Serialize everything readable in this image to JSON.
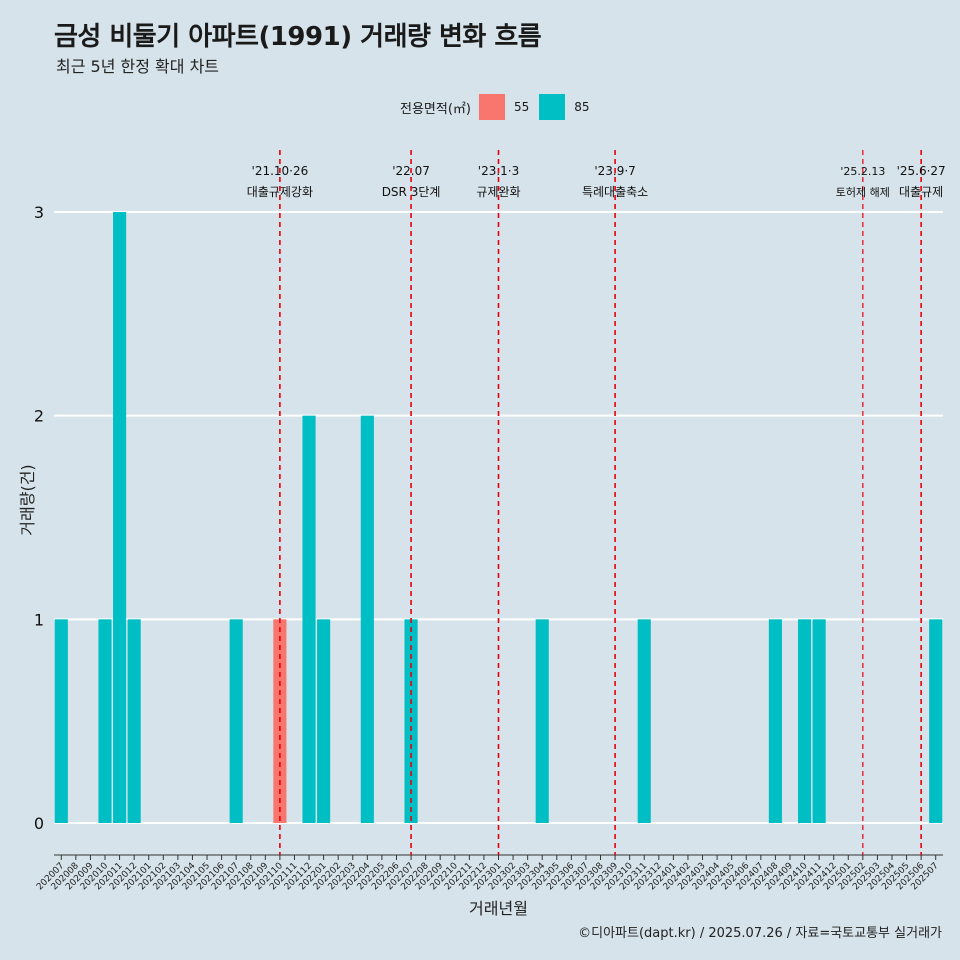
{
  "title": "금성 비둘기 아파트(1991) 거래량 변화 흐름",
  "subtitle": "최근 5년 한정 확대 차트",
  "legend": {
    "title": "전용면적(㎡)",
    "items": [
      {
        "label": "55",
        "color": "#f8766d"
      },
      {
        "label": "85",
        "color": "#00bfc4"
      }
    ]
  },
  "caption": "©디아파트(dapt.kr) / 2025.07.26 / 자료=국토교통부 실거래가",
  "chart_data": {
    "type": "bar",
    "stacked": true,
    "xlabel": "거래년월",
    "ylabel": "거래량(건)",
    "ylim": [
      0,
      3
    ],
    "yticks": [
      0,
      1,
      2,
      3
    ],
    "grid": "horizontal",
    "legend_position": "top",
    "categories": [
      "202007",
      "202008",
      "202009",
      "202010",
      "202011",
      "202012",
      "202101",
      "202102",
      "202103",
      "202104",
      "202105",
      "202106",
      "202107",
      "202108",
      "202109",
      "202110",
      "202111",
      "202112",
      "202201",
      "202202",
      "202203",
      "202204",
      "202205",
      "202206",
      "202207",
      "202208",
      "202209",
      "202210",
      "202211",
      "202212",
      "202301",
      "202302",
      "202303",
      "202304",
      "202305",
      "202306",
      "202307",
      "202308",
      "202309",
      "202310",
      "202311",
      "202312",
      "202401",
      "202402",
      "202403",
      "202404",
      "202405",
      "202406",
      "202407",
      "202408",
      "202409",
      "202410",
      "202411",
      "202412",
      "202501",
      "202502",
      "202503",
      "202504",
      "202505",
      "202506",
      "202507"
    ],
    "series": [
      {
        "name": "55",
        "color": "#f8766d",
        "values": [
          0,
          0,
          0,
          0,
          0,
          0,
          0,
          0,
          0,
          0,
          0,
          0,
          0,
          0,
          0,
          1,
          0,
          0,
          0,
          0,
          0,
          0,
          0,
          0,
          0,
          0,
          0,
          0,
          0,
          0,
          0,
          0,
          0,
          0,
          0,
          0,
          0,
          0,
          0,
          0,
          0,
          0,
          0,
          0,
          0,
          0,
          0,
          0,
          0,
          0,
          0,
          0,
          0,
          0,
          0,
          0,
          0,
          0,
          0,
          0,
          0
        ]
      },
      {
        "name": "85",
        "color": "#00bfc4",
        "values": [
          1,
          0,
          0,
          1,
          3,
          1,
          0,
          0,
          0,
          0,
          0,
          0,
          1,
          0,
          0,
          0,
          0,
          2,
          1,
          0,
          0,
          2,
          0,
          0,
          1,
          0,
          0,
          0,
          0,
          0,
          0,
          0,
          0,
          1,
          0,
          0,
          0,
          0,
          0,
          0,
          1,
          0,
          0,
          0,
          0,
          0,
          0,
          0,
          0,
          1,
          0,
          1,
          1,
          0,
          0,
          0,
          0,
          0,
          0,
          0,
          1
        ]
      }
    ],
    "annotations": [
      {
        "x": "202110",
        "line1": "'21.10·26",
        "line2": "대출규제강화",
        "small": false
      },
      {
        "x": "202207",
        "line1": "'22.07",
        "line2": "DSR 3단계",
        "small": false
      },
      {
        "x": "202301",
        "line1": "'23.1·3",
        "line2": "규제완화",
        "small": false
      },
      {
        "x": "202309",
        "line1": "'23.9·7",
        "line2": "특례대출축소",
        "small": false
      },
      {
        "x": "202502",
        "line1": "'25.2.13",
        "line2": "토허제 해제",
        "small": true
      },
      {
        "x": "202506",
        "line1": "'25.6·27",
        "line2": "대출규제",
        "small": false
      }
    ],
    "annotation_line_color": "#e8000b"
  }
}
